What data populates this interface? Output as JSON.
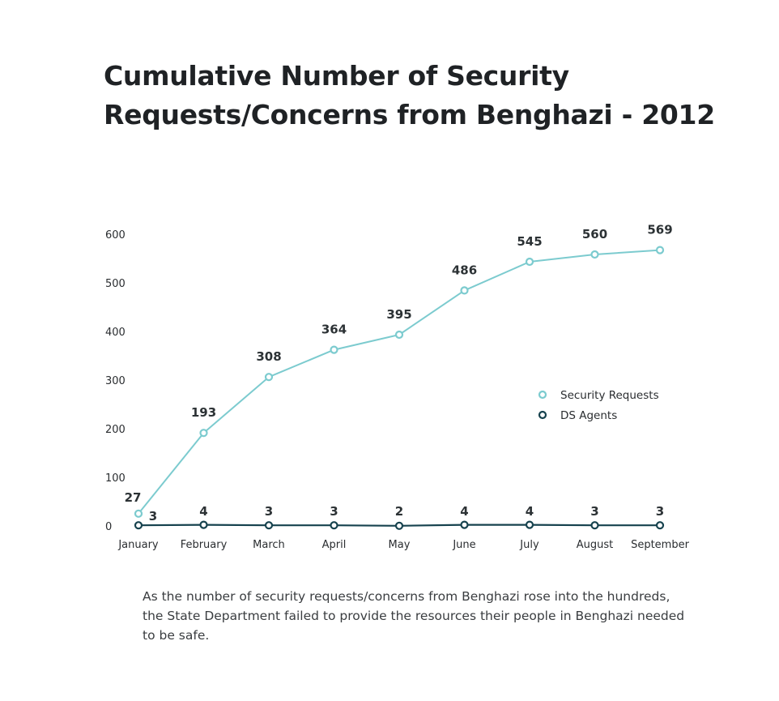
{
  "title_lines": [
    "Cumulative Number of Security",
    "Requests/Concerns from Benghazi - 2012"
  ],
  "caption": "As the number of security requests/concerns from Benghazi rose into the hundreds, the State Department failed to provide the resources their people in Benghazi needed to be safe.",
  "colors": {
    "security_requests": "#7ccbcf",
    "ds_agents": "#16424e",
    "text": "#2a2d30"
  },
  "chart_data": {
    "type": "line",
    "title": "Cumulative Number of Security Requests/Concerns from Benghazi - 2012",
    "xlabel": "",
    "ylabel": "",
    "categories": [
      "January",
      "February",
      "March",
      "April",
      "May",
      "June",
      "July",
      "August",
      "September"
    ],
    "ylim": [
      0,
      600
    ],
    "yticks": [
      0,
      100,
      200,
      300,
      400,
      500,
      600
    ],
    "grid": false,
    "legend_position": "right",
    "series": [
      {
        "name": "Security Requests",
        "values": [
          27,
          193,
          308,
          364,
          395,
          486,
          545,
          560,
          569
        ],
        "color": "#7ccbcf"
      },
      {
        "name": "DS Agents",
        "values": [
          3,
          4,
          3,
          3,
          2,
          4,
          4,
          3,
          3
        ],
        "color": "#16424e"
      }
    ]
  }
}
